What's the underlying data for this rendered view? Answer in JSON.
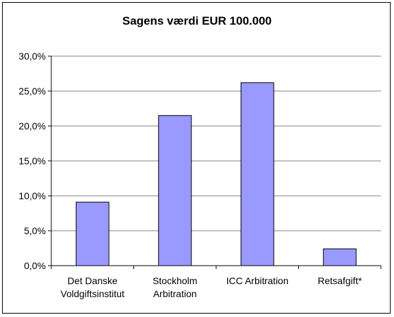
{
  "chart_data": {
    "type": "bar",
    "title": "Sagens værdi EUR 100.000",
    "categories": [
      [
        "Det Danske",
        "Voldgiftsinstitut"
      ],
      [
        "Stockholm",
        "Arbitration"
      ],
      [
        "ICC Arbitration"
      ],
      [
        "Retsafgift*"
      ]
    ],
    "values": [
      9.1,
      21.5,
      26.2,
      2.4
    ],
    "ylim": [
      0,
      30
    ],
    "yticks": [
      "0,0%",
      "5,0%",
      "10,0%",
      "15,0%",
      "20,0%",
      "25,0%",
      "30,0%"
    ],
    "xlabel": "",
    "ylabel": "",
    "grid": true,
    "legend": "none",
    "colors": {
      "bar_fill": "#9999ff",
      "bar_stroke": "#000000",
      "grid": "#808080",
      "plot_bg": "#ffffff"
    }
  }
}
